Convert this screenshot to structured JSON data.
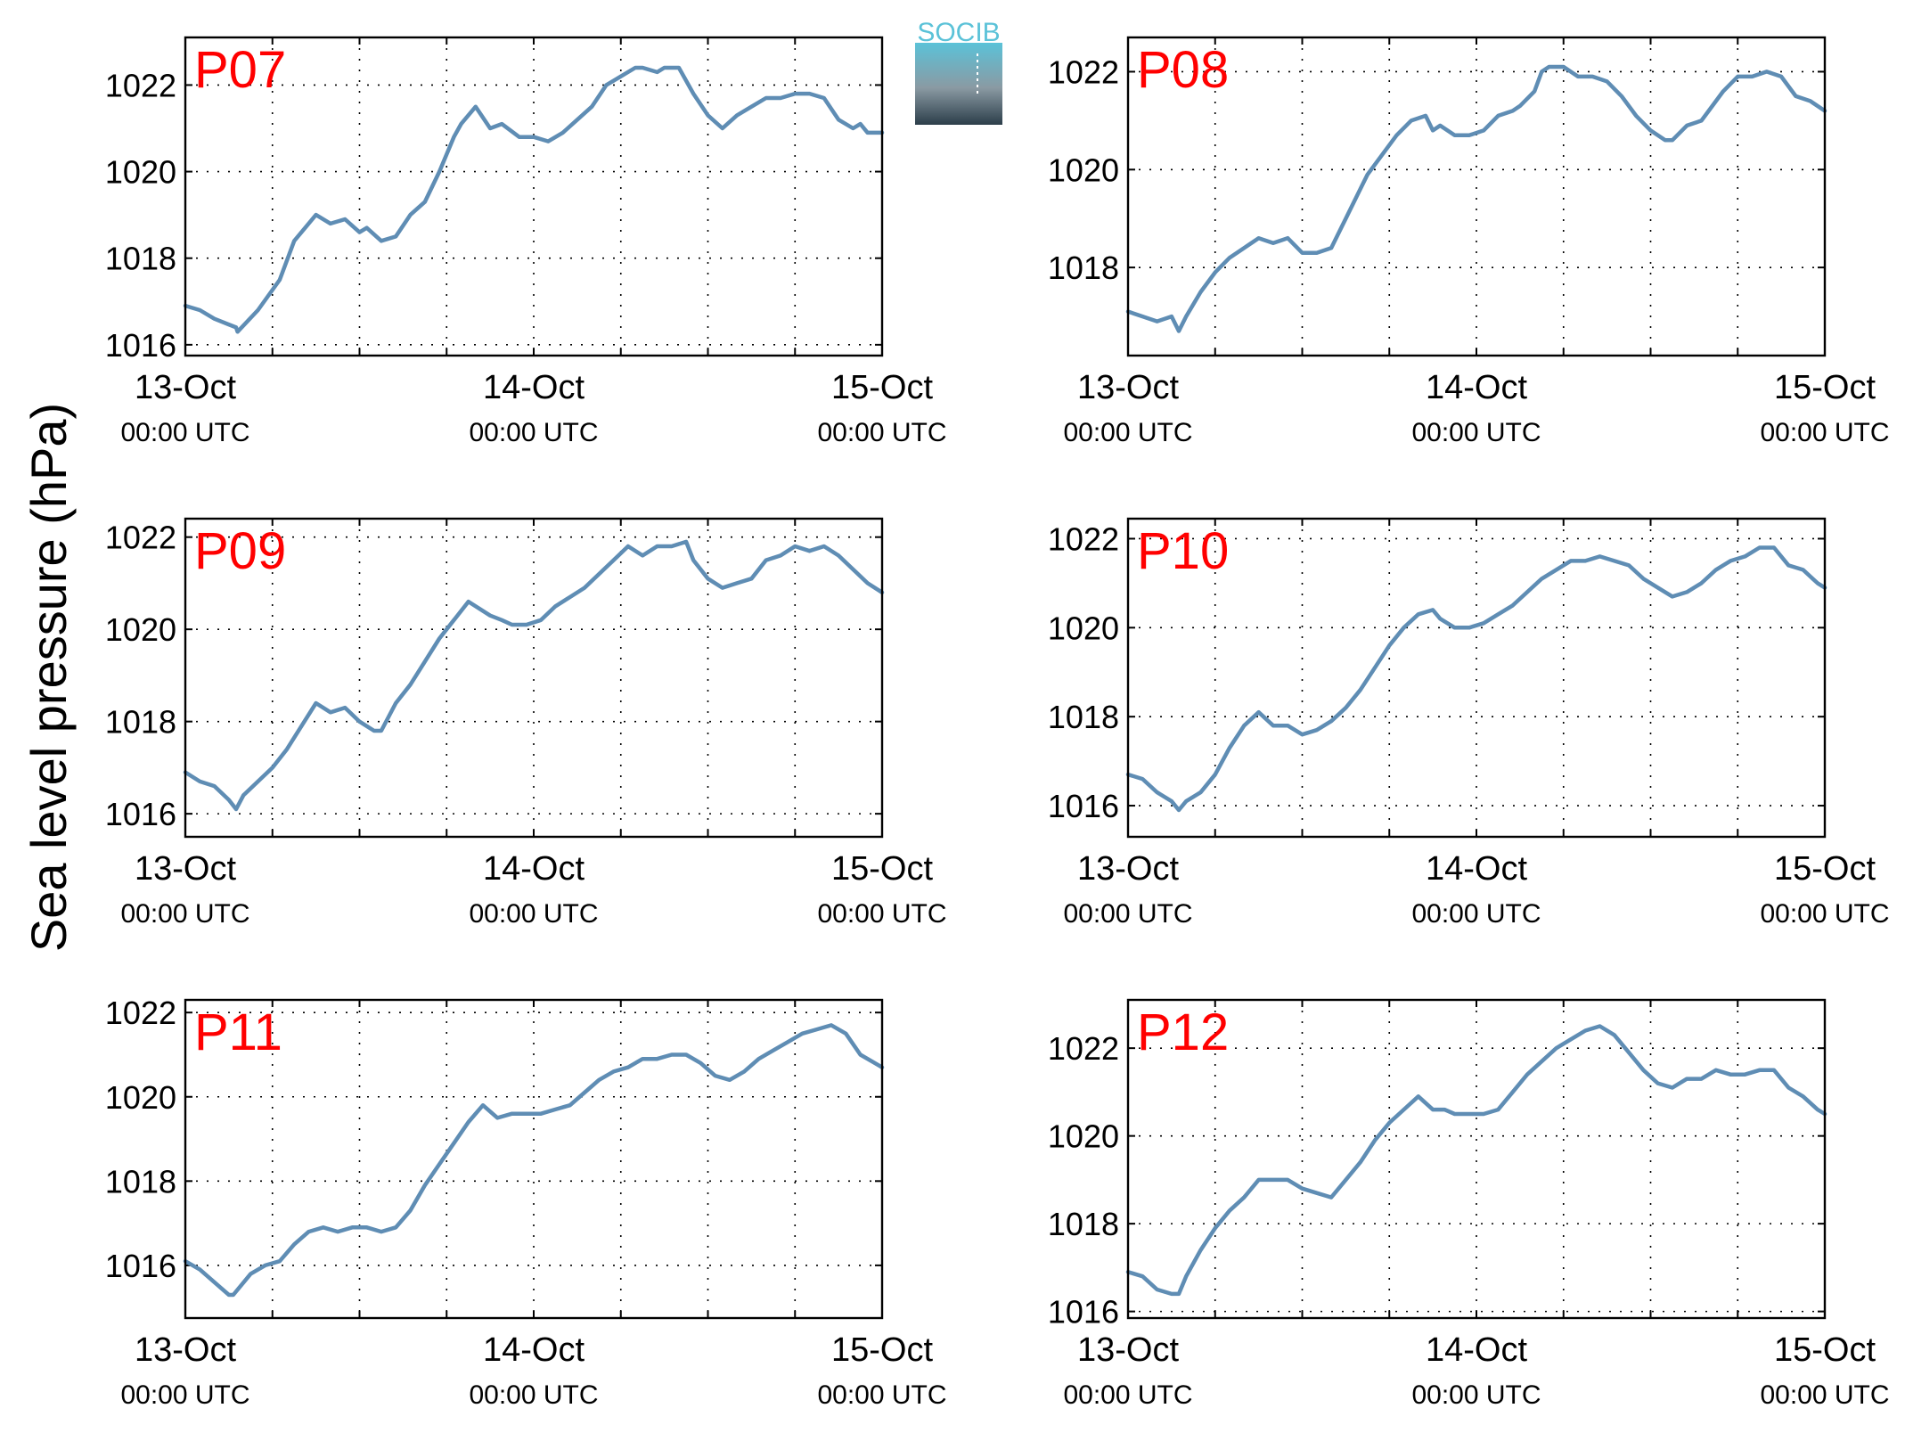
{
  "figure": {
    "ylabel": "Sea level pressure (hPa)",
    "logo_text": "SOCIB",
    "colors": {
      "line": "#5f8db4",
      "station_label": "#ff0000",
      "axes": "#000000",
      "grid": "#000000",
      "logo_top": "#5bc2d8",
      "logo_bottom": "#2c3e4a"
    }
  },
  "chart_data": [
    {
      "type": "line",
      "title": "P07",
      "x_tick_labels": [
        [
          "13-Oct",
          "00:00 UTC"
        ],
        [
          "14-Oct",
          "00:00 UTC"
        ],
        [
          "15-Oct",
          "00:00 UTC"
        ]
      ],
      "y_ticks": [
        1016,
        1018,
        1020,
        1022
      ],
      "xlim": [
        0,
        48
      ],
      "ylim": [
        1015.75,
        1023.1
      ],
      "grid": true,
      "series": [
        {
          "x": [
            0,
            1,
            2,
            3.5,
            3.6,
            5,
            6.5,
            7.5,
            9,
            10,
            11,
            12,
            12.5,
            13.5,
            14.5,
            15.5,
            16.5,
            17.5,
            18.5,
            19,
            20,
            21,
            21.8,
            23,
            24,
            25,
            26,
            27,
            28,
            29,
            30,
            31,
            31.5,
            32.5,
            33,
            34,
            35,
            36,
            37,
            38,
            39,
            40,
            41,
            42,
            43,
            44,
            45,
            46,
            46.5,
            47,
            48
          ],
          "y": [
            1016.9,
            1016.8,
            1016.6,
            1016.4,
            1016.3,
            1016.8,
            1017.5,
            1018.4,
            1019.0,
            1018.8,
            1018.9,
            1018.6,
            1018.7,
            1018.4,
            1018.5,
            1019.0,
            1019.3,
            1020.0,
            1020.8,
            1021.1,
            1021.5,
            1021.0,
            1021.1,
            1020.8,
            1020.8,
            1020.7,
            1020.9,
            1021.2,
            1021.5,
            1022.0,
            1022.2,
            1022.4,
            1022.4,
            1022.3,
            1022.4,
            1022.4,
            1021.8,
            1021.3,
            1021.0,
            1021.3,
            1021.5,
            1021.7,
            1021.7,
            1021.8,
            1021.8,
            1021.7,
            1021.2,
            1021.0,
            1021.1,
            1020.9,
            1020.9
          ]
        }
      ]
    },
    {
      "type": "line",
      "title": "P08",
      "x_tick_labels": [
        [
          "13-Oct",
          "00:00 UTC"
        ],
        [
          "14-Oct",
          "00:00 UTC"
        ],
        [
          "15-Oct",
          "00:00 UTC"
        ]
      ],
      "y_ticks": [
        1018,
        1020,
        1022
      ],
      "xlim": [
        0,
        48
      ],
      "ylim": [
        1016.2,
        1022.7
      ],
      "grid": true,
      "series": [
        {
          "x": [
            0,
            1,
            2,
            3,
            3.5,
            4,
            5,
            6,
            7,
            8,
            9,
            10,
            11,
            12,
            13,
            14,
            15,
            15.5,
            16.5,
            17.5,
            18.5,
            19.5,
            20.5,
            21,
            21.5,
            22.5,
            23.5,
            24.5,
            25.5,
            26.5,
            27,
            28,
            28.5,
            29,
            30,
            31,
            32,
            33,
            34,
            35,
            36,
            37,
            37.5,
            38.5,
            39.5,
            40,
            41,
            42,
            43,
            44,
            45,
            46,
            47,
            48
          ],
          "y": [
            1017.1,
            1017.0,
            1016.9,
            1017.0,
            1016.7,
            1017.0,
            1017.5,
            1017.9,
            1018.2,
            1018.4,
            1018.6,
            1018.5,
            1018.6,
            1018.3,
            1018.3,
            1018.4,
            1019.0,
            1019.3,
            1019.9,
            1020.3,
            1020.7,
            1021.0,
            1021.1,
            1020.8,
            1020.9,
            1020.7,
            1020.7,
            1020.8,
            1021.1,
            1021.2,
            1021.3,
            1021.6,
            1022.0,
            1022.1,
            1022.1,
            1021.9,
            1021.9,
            1021.8,
            1021.5,
            1021.1,
            1020.8,
            1020.6,
            1020.6,
            1020.9,
            1021.0,
            1021.2,
            1021.6,
            1021.9,
            1021.9,
            1022.0,
            1021.9,
            1021.5,
            1021.4,
            1021.2
          ]
        }
      ]
    },
    {
      "type": "line",
      "title": "P09",
      "x_tick_labels": [
        [
          "13-Oct",
          "00:00 UTC"
        ],
        [
          "14-Oct",
          "00:00 UTC"
        ],
        [
          "15-Oct",
          "00:00 UTC"
        ]
      ],
      "y_ticks": [
        1016,
        1018,
        1020,
        1022
      ],
      "xlim": [
        0,
        48
      ],
      "ylim": [
        1015.5,
        1022.4
      ],
      "grid": true,
      "series": [
        {
          "x": [
            0,
            1,
            2,
            3,
            3.5,
            4,
            5,
            6,
            7,
            8,
            9,
            10,
            11,
            12,
            13,
            13.5,
            14.5,
            15.5,
            16.5,
            17.5,
            18.5,
            19.5,
            21,
            21.8,
            22.5,
            23.5,
            24.5,
            25.5,
            26.5,
            27.5,
            28.5,
            29.5,
            30.5,
            31.5,
            32.5,
            33.5,
            34.5,
            35,
            36,
            37,
            38,
            39,
            40,
            41,
            42,
            43,
            44,
            45,
            46,
            47,
            48
          ],
          "y": [
            1016.9,
            1016.7,
            1016.6,
            1016.3,
            1016.1,
            1016.4,
            1016.7,
            1017.0,
            1017.4,
            1017.9,
            1018.4,
            1018.2,
            1018.3,
            1018.0,
            1017.8,
            1017.8,
            1018.4,
            1018.8,
            1019.3,
            1019.8,
            1020.2,
            1020.6,
            1020.3,
            1020.2,
            1020.1,
            1020.1,
            1020.2,
            1020.5,
            1020.7,
            1020.9,
            1021.2,
            1021.5,
            1021.8,
            1021.6,
            1021.8,
            1021.8,
            1021.9,
            1021.5,
            1021.1,
            1020.9,
            1021.0,
            1021.1,
            1021.5,
            1021.6,
            1021.8,
            1021.7,
            1021.8,
            1021.6,
            1021.3,
            1021.0,
            1020.8
          ]
        }
      ]
    },
    {
      "type": "line",
      "title": "P10",
      "x_tick_labels": [
        [
          "13-Oct",
          "00:00 UTC"
        ],
        [
          "14-Oct",
          "00:00 UTC"
        ],
        [
          "15-Oct",
          "00:00 UTC"
        ]
      ],
      "y_ticks": [
        1016,
        1018,
        1020,
        1022
      ],
      "xlim": [
        0,
        48
      ],
      "ylim": [
        1015.3,
        1022.45
      ],
      "grid": true,
      "series": [
        {
          "x": [
            0,
            1,
            2,
            3,
            3.5,
            4,
            5,
            6,
            7,
            8,
            9,
            10,
            11,
            12,
            13,
            14,
            15,
            16,
            17,
            18,
            19,
            20,
            21,
            21.5,
            22.5,
            23.5,
            24.5,
            25.5,
            26.5,
            27.5,
            28.5,
            29.5,
            30.5,
            31.5,
            32.5,
            33.5,
            34.5,
            35.5,
            36.5,
            37.5,
            38.5,
            39.5,
            40.5,
            41.5,
            42.5,
            43.5,
            44.5,
            45.5,
            46.5,
            47.5,
            48
          ],
          "y": [
            1016.7,
            1016.6,
            1016.3,
            1016.1,
            1015.9,
            1016.1,
            1016.3,
            1016.7,
            1017.3,
            1017.8,
            1018.1,
            1017.8,
            1017.8,
            1017.6,
            1017.7,
            1017.9,
            1018.2,
            1018.6,
            1019.1,
            1019.6,
            1020.0,
            1020.3,
            1020.4,
            1020.2,
            1020.0,
            1020.0,
            1020.1,
            1020.3,
            1020.5,
            1020.8,
            1021.1,
            1021.3,
            1021.5,
            1021.5,
            1021.6,
            1021.5,
            1021.4,
            1021.1,
            1020.9,
            1020.7,
            1020.8,
            1021.0,
            1021.3,
            1021.5,
            1021.6,
            1021.8,
            1021.8,
            1021.4,
            1021.3,
            1021.0,
            1020.9
          ]
        }
      ]
    },
    {
      "type": "line",
      "title": "P11",
      "x_tick_labels": [
        [
          "13-Oct",
          "00:00 UTC"
        ],
        [
          "14-Oct",
          "00:00 UTC"
        ],
        [
          "15-Oct",
          "00:00 UTC"
        ]
      ],
      "y_ticks": [
        1016,
        1018,
        1020,
        1022
      ],
      "xlim": [
        0,
        48
      ],
      "ylim": [
        1014.75,
        1022.3
      ],
      "grid": true,
      "series": [
        {
          "x": [
            0,
            1,
            2,
            3,
            3.3,
            4.5,
            5.5,
            6.5,
            7.5,
            8.5,
            9.5,
            10.5,
            11.5,
            12.5,
            13.5,
            14.5,
            15.5,
            16.5,
            17.5,
            18.5,
            19.5,
            20.5,
            21.5,
            22.5,
            23.5,
            24.5,
            25.5,
            26.5,
            27.5,
            28.5,
            29.5,
            30.5,
            31.5,
            32.5,
            33.5,
            34.5,
            35.5,
            36.5,
            37.5,
            38.5,
            39.5,
            40.5,
            41.5,
            42.5,
            43.5,
            44.5,
            45.5,
            46.5,
            47.5,
            48
          ],
          "y": [
            1016.1,
            1015.9,
            1015.6,
            1015.3,
            1015.3,
            1015.8,
            1016.0,
            1016.1,
            1016.5,
            1016.8,
            1016.9,
            1016.8,
            1016.9,
            1016.9,
            1016.8,
            1016.9,
            1017.3,
            1017.9,
            1018.4,
            1018.9,
            1019.4,
            1019.8,
            1019.5,
            1019.6,
            1019.6,
            1019.6,
            1019.7,
            1019.8,
            1020.1,
            1020.4,
            1020.6,
            1020.7,
            1020.9,
            1020.9,
            1021.0,
            1021.0,
            1020.8,
            1020.5,
            1020.4,
            1020.6,
            1020.9,
            1021.1,
            1021.3,
            1021.5,
            1021.6,
            1021.7,
            1021.5,
            1021.0,
            1020.8,
            1020.7
          ]
        }
      ]
    },
    {
      "type": "line",
      "title": "P12",
      "x_tick_labels": [
        [
          "13-Oct",
          "00:00 UTC"
        ],
        [
          "14-Oct",
          "00:00 UTC"
        ],
        [
          "15-Oct",
          "00:00 UTC"
        ]
      ],
      "y_ticks": [
        1016,
        1018,
        1020,
        1022
      ],
      "xlim": [
        0,
        48
      ],
      "ylim": [
        1015.85,
        1023.1
      ],
      "grid": true,
      "series": [
        {
          "x": [
            0,
            1,
            2,
            3,
            3.5,
            4,
            5,
            6,
            7,
            8,
            9,
            10,
            11,
            12,
            13,
            14,
            15,
            16,
            17,
            18,
            19,
            20,
            21,
            21.8,
            22.5,
            23.5,
            24.5,
            25.5,
            26.5,
            27.5,
            28.5,
            29.5,
            30.5,
            31.5,
            32.5,
            33.5,
            34.5,
            35.5,
            36.5,
            37.5,
            38.5,
            39.5,
            40.5,
            41.5,
            42.5,
            43.5,
            44.5,
            45.5,
            46.5,
            47.5,
            48
          ],
          "y": [
            1016.9,
            1016.8,
            1016.5,
            1016.4,
            1016.4,
            1016.8,
            1017.4,
            1017.9,
            1018.3,
            1018.6,
            1019.0,
            1019.0,
            1019.0,
            1018.8,
            1018.7,
            1018.6,
            1019.0,
            1019.4,
            1019.9,
            1020.3,
            1020.6,
            1020.9,
            1020.6,
            1020.6,
            1020.5,
            1020.5,
            1020.5,
            1020.6,
            1021.0,
            1021.4,
            1021.7,
            1022.0,
            1022.2,
            1022.4,
            1022.5,
            1022.3,
            1021.9,
            1021.5,
            1021.2,
            1021.1,
            1021.3,
            1021.3,
            1021.5,
            1021.4,
            1021.4,
            1021.5,
            1021.5,
            1021.1,
            1020.9,
            1020.6,
            1020.5
          ]
        }
      ]
    }
  ]
}
